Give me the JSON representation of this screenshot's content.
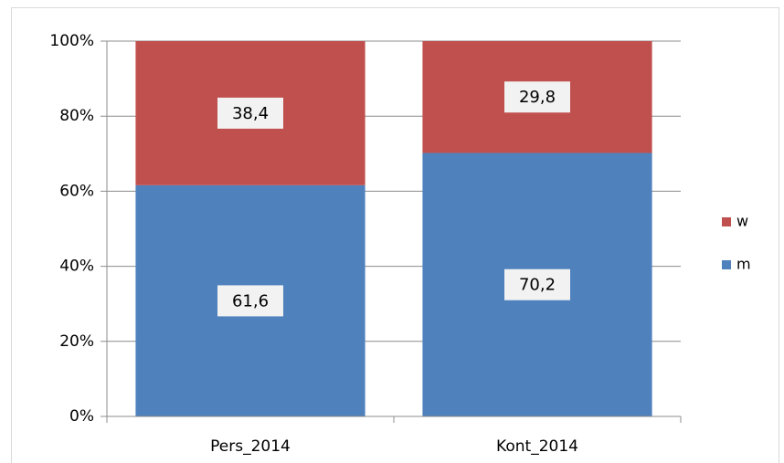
{
  "chart_data": {
    "type": "stacked_bar_100",
    "categories": [
      "Pers_2014",
      "Kont_2014"
    ],
    "series": [
      {
        "name": "m",
        "color": "#4f81bd",
        "values": [
          61.6,
          70.2
        ],
        "value_labels": [
          "61,6",
          "70,2"
        ]
      },
      {
        "name": "w",
        "color": "#c0504d",
        "values": [
          38.4,
          29.8
        ],
        "value_labels": [
          "38,4",
          "29,8"
        ]
      }
    ],
    "ylim": [
      0,
      100
    ],
    "yticks": [
      {
        "value": 0,
        "label": "0%"
      },
      {
        "value": 20,
        "label": "20%"
      },
      {
        "value": 40,
        "label": "40%"
      },
      {
        "value": 60,
        "label": "60%"
      },
      {
        "value": 80,
        "label": "80%"
      },
      {
        "value": 100,
        "label": "100%"
      }
    ],
    "grid": true,
    "legend": "right"
  }
}
